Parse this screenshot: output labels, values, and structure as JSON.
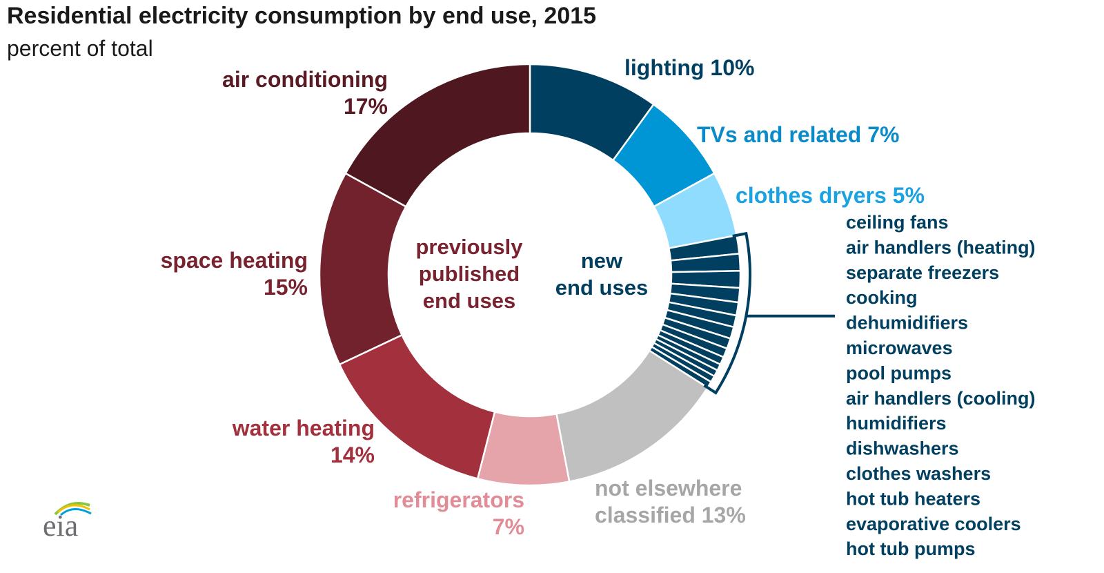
{
  "title": "Residential electricity consumption by end use, 2015",
  "subtitle": "percent of total",
  "logo_text": "eia",
  "colors": {
    "new_end_uses": "#003f5f",
    "bracket": "#003f5f"
  },
  "chart_data": {
    "type": "pie",
    "style": "donut",
    "title": "Residential electricity consumption by end use, 2015",
    "subtitle": "percent of total",
    "unit": "percent",
    "slices": [
      {
        "label": "lighting",
        "value": 10,
        "label_lines": [
          "lighting 10%"
        ],
        "color": "#003f5f",
        "text_color": "#003f5f",
        "group": "previously published end uses"
      },
      {
        "label": "TVs and related",
        "value": 7,
        "label_lines": [
          "TVs and related 7%"
        ],
        "color": "#0096d6",
        "text_color": "#0a8bc8",
        "group": "previously published end uses"
      },
      {
        "label": "clothes dryers",
        "value": 5,
        "label_lines": [
          "clothes dryers 5%"
        ],
        "color": "#8fdcff",
        "text_color": "#1aa3e0",
        "group": "previously published end uses"
      },
      {
        "label": "new end uses",
        "value": 12,
        "color": "#003f5f",
        "group": "new end uses"
      },
      {
        "label": "not elsewhere classified",
        "value": 13,
        "label_lines": [
          "not elsewhere",
          "classified 13%"
        ],
        "color": "#c0c0c0",
        "text_color": "#a6a6a6",
        "group": "previously published end uses"
      },
      {
        "label": "refrigerators",
        "value": 7,
        "label_lines": [
          "refrigerators",
          "7%"
        ],
        "color": "#e5a3aa",
        "text_color": "#e18c96",
        "group": "previously published end uses"
      },
      {
        "label": "water heating",
        "value": 14,
        "label_lines": [
          "water heating",
          "14%"
        ],
        "color": "#a2303d",
        "text_color": "#a2303d",
        "group": "previously published end uses"
      },
      {
        "label": "space heating",
        "value": 15,
        "label_lines": [
          "space heating",
          "15%"
        ],
        "color": "#72222c",
        "text_color": "#7a2330",
        "group": "previously published end uses"
      },
      {
        "label": "air conditioning",
        "value": 17,
        "label_lines": [
          "air conditioning",
          "17%"
        ],
        "color": "#4f1820",
        "text_color": "#5a1a23",
        "group": "previously published end uses"
      }
    ],
    "new_end_uses": {
      "total": 12,
      "items": [
        {
          "label": "ceiling fans",
          "value": 1.4
        },
        {
          "label": "air handlers (heating)",
          "value": 1.3
        },
        {
          "label": "separate freezers",
          "value": 1.3
        },
        {
          "label": "cooking",
          "value": 1.1
        },
        {
          "label": "dehumidifiers",
          "value": 1.0
        },
        {
          "label": "microwaves",
          "value": 0.9
        },
        {
          "label": "pool pumps",
          "value": 0.9
        },
        {
          "label": "air handlers (cooling)",
          "value": 0.8
        },
        {
          "label": "humidifiers",
          "value": 0.7
        },
        {
          "label": "dishwashers",
          "value": 0.6
        },
        {
          "label": "clothes washers",
          "value": 0.5
        },
        {
          "label": "hot tub heaters",
          "value": 0.5
        },
        {
          "label": "evaporative coolers",
          "value": 0.5
        },
        {
          "label": "hot tub pumps",
          "value": 0.5
        }
      ]
    },
    "center_labels": {
      "previous": [
        "previously",
        "published",
        "end uses"
      ],
      "new": [
        "new",
        "end uses"
      ]
    }
  }
}
